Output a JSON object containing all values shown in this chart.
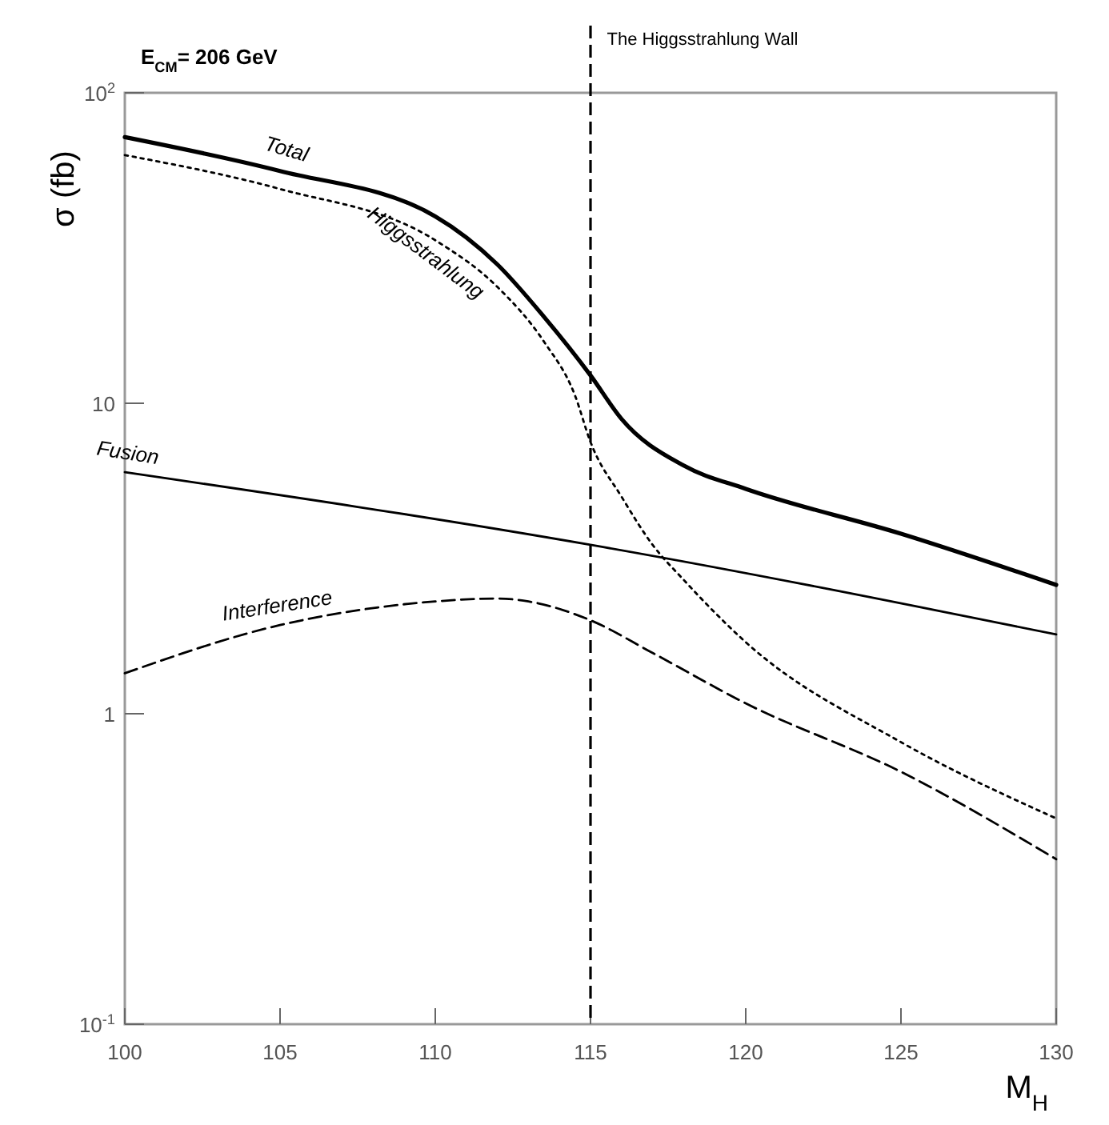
{
  "chart_data": {
    "type": "line",
    "title": "E$_{CM}$= 206 GeV",
    "xlabel": "M$_{H}$",
    "ylabel": "σ (fb)",
    "log": "y",
    "grid": false,
    "xlim": [
      100,
      130
    ],
    "xticks": [
      100,
      105,
      110,
      115,
      120,
      125,
      130
    ],
    "ylim": [
      0.1,
      100
    ],
    "yticks": [
      {
        "value": 0.1,
        "label": "10$^{-1}$"
      },
      1,
      10,
      {
        "value": 100,
        "label": "10$^{2}$"
      }
    ],
    "series": [
      {
        "name": "Total",
        "color": "#000000",
        "line_style": "solid",
        "x": [
          100,
          105,
          110,
          112,
          113.5,
          115,
          116,
          118,
          120,
          125,
          130
        ],
        "values": [
          72,
          56,
          40,
          28,
          19,
          12.3,
          8.9,
          6.3,
          5.3,
          3.8,
          2.6
        ]
      },
      {
        "name": "Higgsstrahlung",
        "color": "#000000",
        "line_style": "dotted",
        "x": [
          100,
          105,
          110,
          112,
          113.5,
          114.5,
          115,
          116,
          117,
          118,
          120,
          125,
          130
        ],
        "values": [
          63,
          49,
          33.5,
          23.7,
          15.8,
          10.6,
          7.5,
          5,
          3.5,
          2.7,
          1.7,
          0.81,
          0.46
        ]
      },
      {
        "name": "Fusion",
        "color": "#000000",
        "line_style": "solid",
        "x": [
          100,
          115,
          130
        ],
        "values": [
          6.0,
          3.5,
          1.8
        ]
      },
      {
        "name": "Interference",
        "color": "#000000",
        "line_style": "dashed",
        "x": [
          100,
          105,
          110,
          112,
          113,
          115,
          117,
          120,
          125,
          130
        ],
        "values": [
          1.35,
          1.93,
          2.3,
          2.35,
          2.3,
          2.0,
          1.57,
          1.08,
          0.65,
          0.34
        ]
      }
    ],
    "ref_lines": [
      {
        "axis": "x",
        "value": 115,
        "label": "The Higgsstrahlung Wall",
        "line_style": "dashed",
        "color": "#000000"
      }
    ]
  }
}
